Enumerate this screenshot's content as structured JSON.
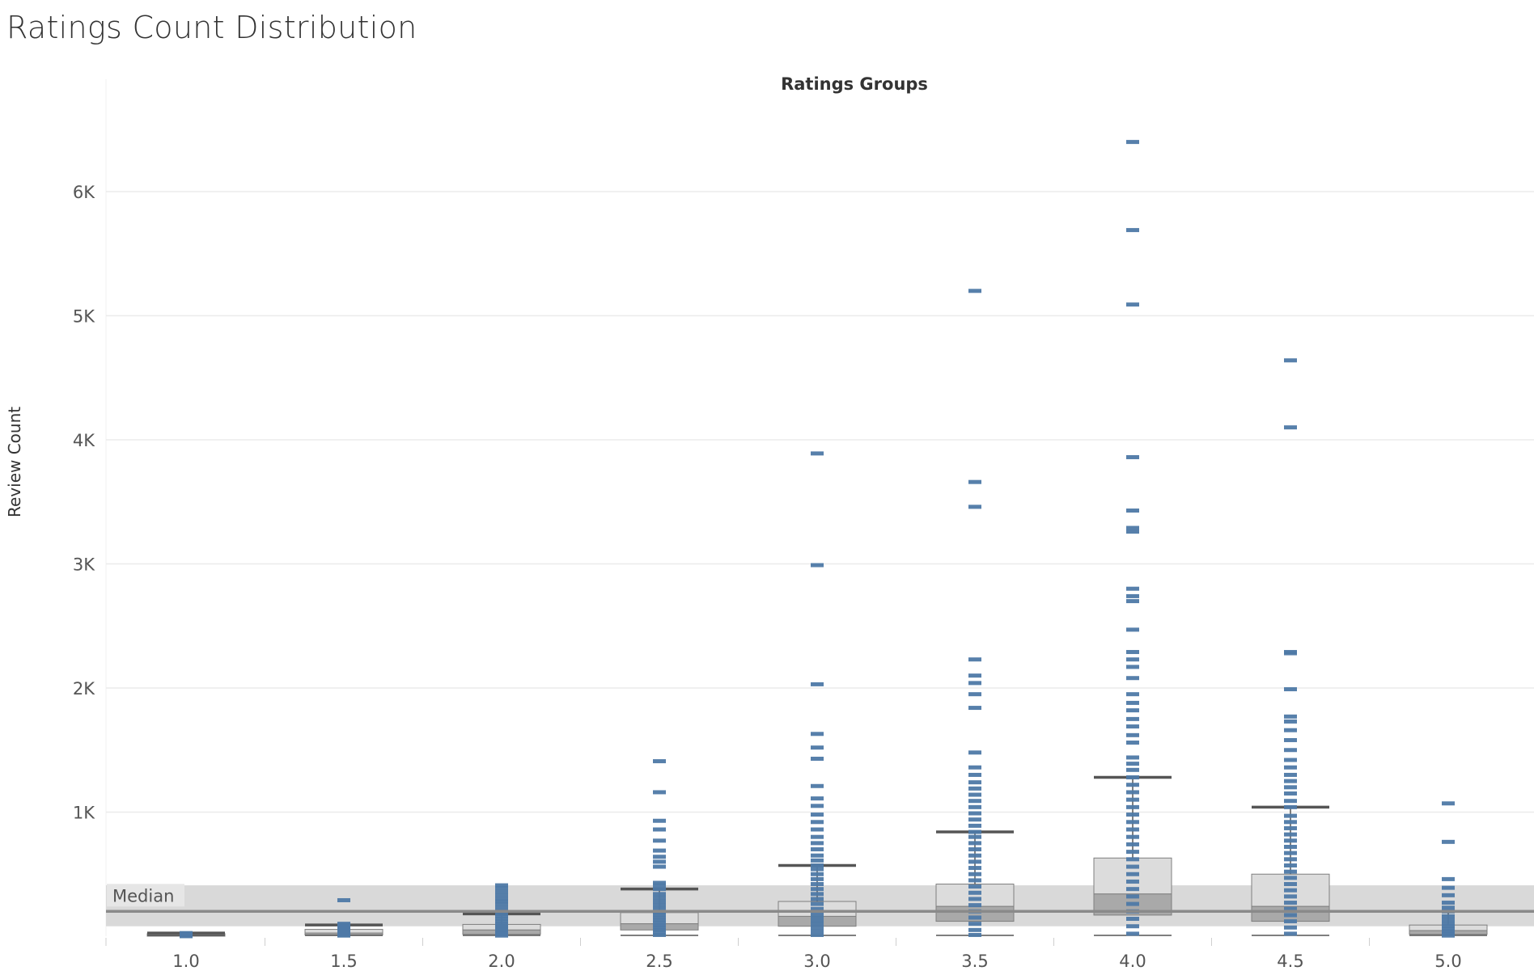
{
  "chart_data": {
    "type": "scatter",
    "subtype": "box-and-whisker with dash marks",
    "title": "Ratings Count Distribution",
    "column_header": "Ratings Groups",
    "ylabel": "Review Count",
    "ylim": [
      0,
      6500
    ],
    "yticks": [
      {
        "value": 1000,
        "label": "1K"
      },
      {
        "value": 2000,
        "label": "2K"
      },
      {
        "value": 3000,
        "label": "3K"
      },
      {
        "value": 4000,
        "label": "4K"
      },
      {
        "value": 5000,
        "label": "5K"
      },
      {
        "value": 6000,
        "label": "6K"
      }
    ],
    "categories": [
      "1.0",
      "1.5",
      "2.0",
      "2.5",
      "3.0",
      "3.5",
      "4.0",
      "4.5",
      "5.0"
    ],
    "reference_line": {
      "label": "Median",
      "value": 200,
      "band": [
        80,
        410
      ]
    },
    "colors": {
      "marks": "#4e79a7",
      "box_light": "#dcdcdc",
      "box_dark": "#a9a9a9",
      "whisker": "#555555",
      "ref_band": "#d9d9d9",
      "ref_line": "#8a8a8a",
      "grid": "#ebebeb"
    },
    "groups": [
      {
        "category": "1.0",
        "min": 0,
        "q1": 0,
        "median": 10,
        "q3": 20,
        "upper_whisker": 25,
        "points": [
          0,
          3,
          6,
          10,
          14,
          18,
          22,
          25
        ]
      },
      {
        "category": "1.5",
        "min": 0,
        "q1": 10,
        "median": 25,
        "q3": 55,
        "upper_whisker": 90,
        "points": [
          5,
          10,
          15,
          20,
          30,
          40,
          50,
          60,
          70,
          80,
          90,
          100,
          290
        ]
      },
      {
        "category": "2.0",
        "min": 0,
        "q1": 15,
        "median": 50,
        "q3": 95,
        "upper_whisker": 180,
        "points": [
          5,
          15,
          25,
          40,
          55,
          70,
          85,
          100,
          120,
          140,
          160,
          180,
          200,
          230,
          260,
          280,
          300,
          330,
          360,
          390,
          410
        ]
      },
      {
        "category": "2.5",
        "min": 0,
        "q1": 50,
        "median": 100,
        "q3": 190,
        "upper_whisker": 380,
        "points": [
          10,
          30,
          50,
          70,
          90,
          110,
          130,
          150,
          170,
          190,
          220,
          250,
          280,
          310,
          340,
          380,
          410,
          430,
          560,
          600,
          640,
          690,
          770,
          860,
          930,
          1160,
          1410
        ]
      },
      {
        "category": "3.0",
        "min": 0,
        "q1": 80,
        "median": 160,
        "q3": 280,
        "upper_whisker": 570,
        "points": [
          10,
          40,
          70,
          100,
          130,
          160,
          190,
          220,
          260,
          300,
          340,
          380,
          420,
          460,
          500,
          540,
          570,
          610,
          650,
          700,
          750,
          800,
          860,
          920,
          980,
          1050,
          1110,
          1210,
          1430,
          1520,
          1630,
          2030,
          2990,
          3890
        ]
      },
      {
        "category": "3.5",
        "min": 0,
        "q1": 120,
        "median": 240,
        "q3": 420,
        "upper_whisker": 840,
        "points": [
          10,
          50,
          100,
          150,
          200,
          250,
          300,
          350,
          400,
          450,
          500,
          550,
          600,
          650,
          700,
          750,
          800,
          840,
          890,
          940,
          990,
          1040,
          1090,
          1140,
          1190,
          1240,
          1300,
          1360,
          1480,
          1840,
          1950,
          2040,
          2100,
          2230,
          3460,
          3660,
          5200
        ]
      },
      {
        "category": "4.0",
        "min": 0,
        "q1": 170,
        "median": 340,
        "q3": 630,
        "upper_whisker": 1280,
        "points": [
          20,
          80,
          140,
          200,
          260,
          320,
          380,
          440,
          500,
          560,
          620,
          680,
          740,
          800,
          860,
          920,
          980,
          1040,
          1100,
          1160,
          1220,
          1280,
          1340,
          1390,
          1440,
          1560,
          1620,
          1690,
          1750,
          1820,
          1880,
          1950,
          2080,
          2170,
          2230,
          2290,
          2470,
          2700,
          2740,
          2800,
          3260,
          3290,
          3430,
          3860,
          5090,
          5690,
          6400
        ]
      },
      {
        "category": "4.5",
        "min": 0,
        "q1": 120,
        "median": 240,
        "q3": 500,
        "upper_whisker": 1040,
        "points": [
          20,
          70,
          120,
          170,
          220,
          270,
          320,
          370,
          420,
          470,
          520,
          570,
          620,
          670,
          720,
          770,
          820,
          870,
          920,
          970,
          1040,
          1090,
          1150,
          1200,
          1250,
          1300,
          1360,
          1420,
          1500,
          1580,
          1660,
          1730,
          1770,
          1990,
          2280,
          2290,
          4100,
          4640
        ]
      },
      {
        "category": "5.0",
        "min": 0,
        "q1": 15,
        "median": 45,
        "q3": 90,
        "upper_whisker": 200,
        "points": [
          5,
          20,
          40,
          60,
          80,
          100,
          130,
          160,
          200,
          230,
          270,
          330,
          390,
          460,
          760,
          1070
        ]
      }
    ]
  }
}
